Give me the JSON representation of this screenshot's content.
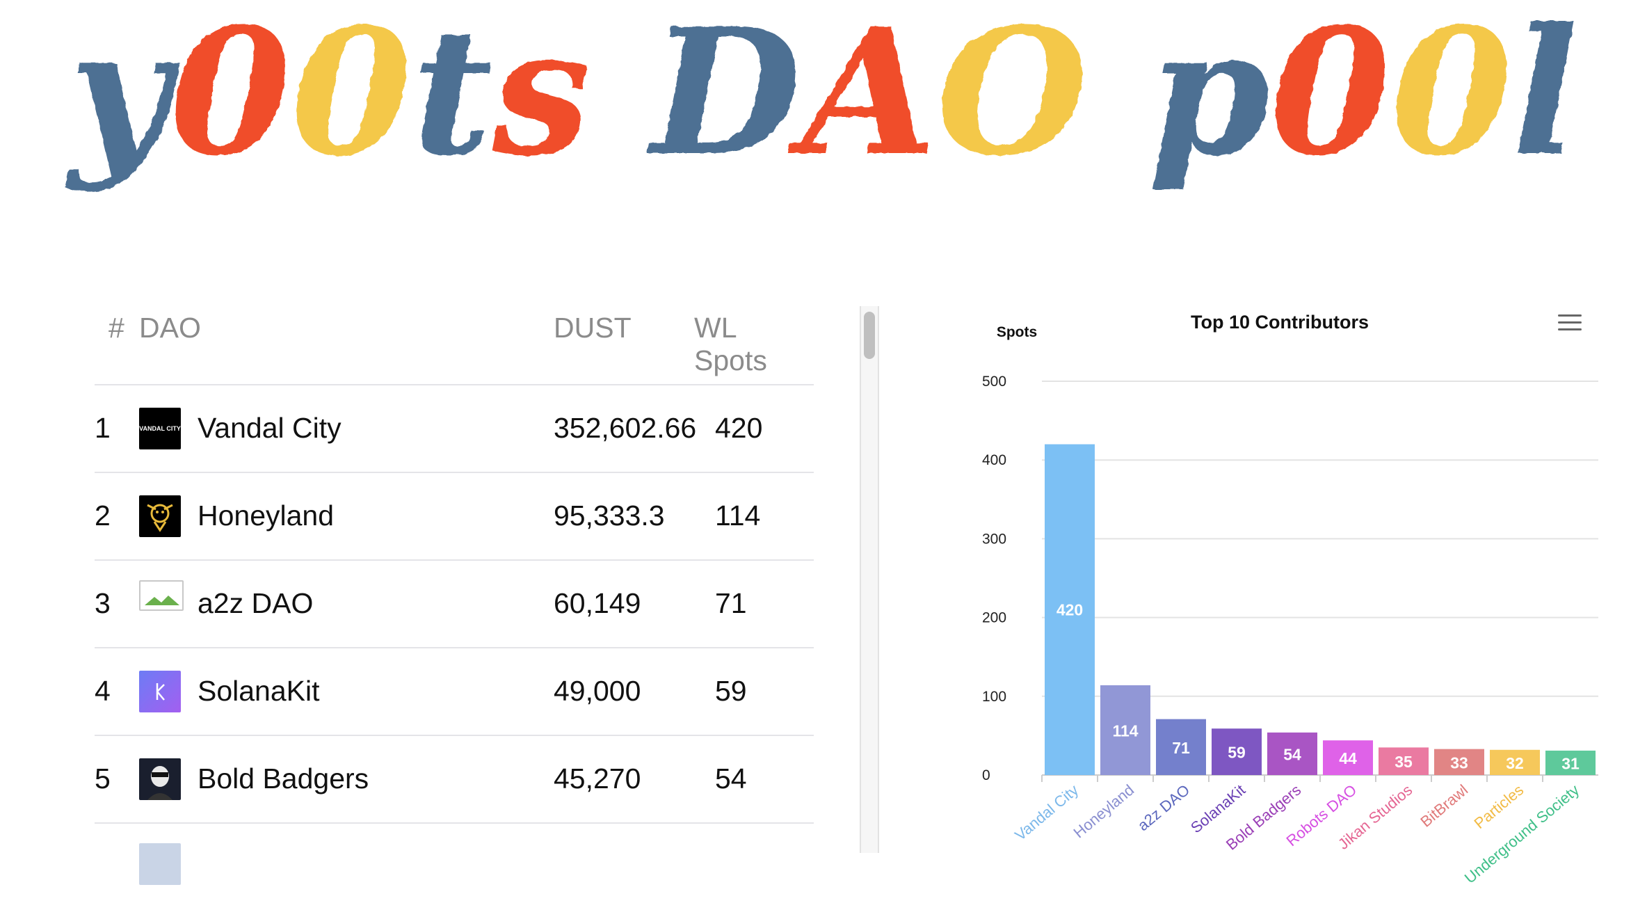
{
  "header": {
    "logo_text": "y00ts DAO p00l"
  },
  "table": {
    "columns": {
      "rank": "#",
      "dao": "DAO",
      "dust": "DUST",
      "wl": "WL Spots"
    },
    "rows": [
      {
        "rank": "1",
        "name": "Vandal City",
        "dust": "352,602.66",
        "wl": "420",
        "avatar_text": "VANDAL CITY"
      },
      {
        "rank": "2",
        "name": "Honeyland",
        "dust": "95,333.3",
        "wl": "114",
        "avatar_text": ""
      },
      {
        "rank": "3",
        "name": "a2z DAO",
        "dust": "60,149",
        "wl": "71",
        "avatar_text": ""
      },
      {
        "rank": "4",
        "name": "SolanaKit",
        "dust": "49,000",
        "wl": "59",
        "avatar_text": ""
      },
      {
        "rank": "5",
        "name": "Bold Badgers",
        "dust": "45,270",
        "wl": "54",
        "avatar_text": ""
      }
    ]
  },
  "chart_data": {
    "type": "bar",
    "title": "Top 10 Contributors",
    "ylabel": "Spots",
    "xlabel": "",
    "ylim": [
      0,
      500
    ],
    "yticks": [
      0,
      100,
      200,
      300,
      400,
      500
    ],
    "categories": [
      "Vandal City",
      "Honeyland",
      "a2z DAO",
      "SolanaKit",
      "Bold Badgers",
      "Robots DAO",
      "Jikan Studios",
      "BitBrawl",
      "Particles",
      "Underground Society"
    ],
    "values": [
      420,
      114,
      71,
      59,
      54,
      44,
      35,
      33,
      32,
      31
    ],
    "colors": [
      "#7cc0f4",
      "#9197d6",
      "#7480cc",
      "#7e57c2",
      "#a955c4",
      "#df62e8",
      "#ea7aa1",
      "#e18585",
      "#f6c85b",
      "#5ec99b"
    ],
    "label_colors": [
      "#7cb8ea",
      "#8a8fd0",
      "#5b67bd",
      "#6a40b4",
      "#9a3fb6",
      "#d64fe2",
      "#e56693",
      "#e07a7a",
      "#f2bb45",
      "#3fbf88"
    ],
    "legend": "none"
  }
}
